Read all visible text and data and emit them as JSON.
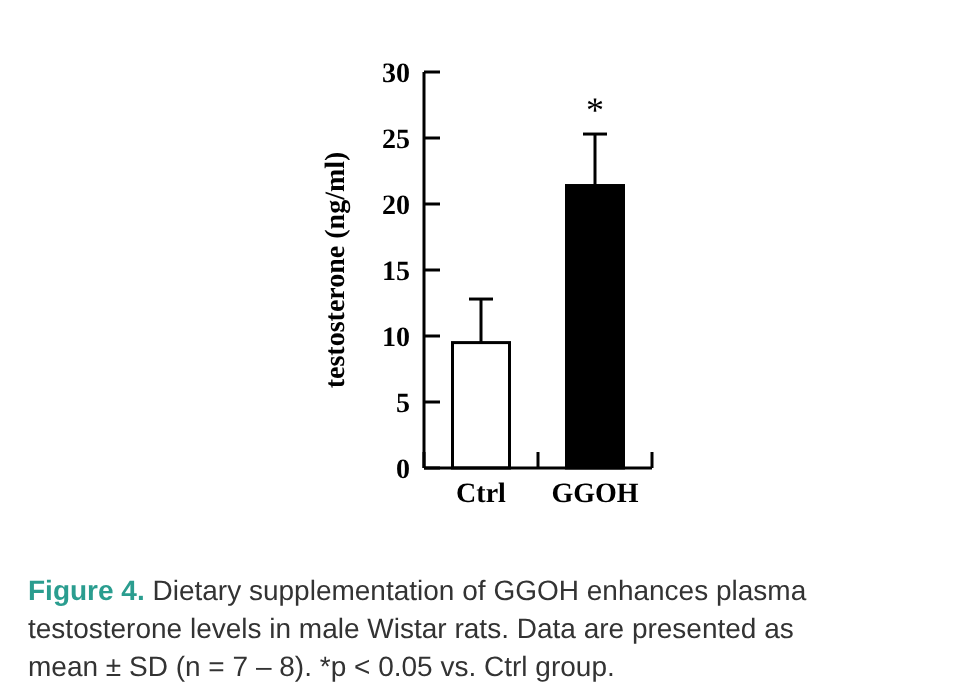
{
  "chart_data": {
    "type": "bar",
    "ylabel": "testosterone (ng/ml)",
    "categories": [
      "Ctrl",
      "GGOH"
    ],
    "values": [
      9.5,
      21.4
    ],
    "colors": [
      "#ffffff",
      "#000000"
    ],
    "errors": [
      [
        9.5,
        12.8
      ],
      [
        21.4,
        25.3
      ]
    ],
    "ylim": [
      0,
      30
    ],
    "yticks": [
      0,
      5,
      10,
      15,
      20,
      25,
      30
    ],
    "grid": false,
    "annotations": [
      "*",
      "Figure 4.",
      "Dietary supplementation of GGOH enhances plasma testosterone levels in male Wistar rats. Data are presented as mean ± SD (n = 7 – 8). *p < 0.05 vs. Ctrl group."
    ]
  }
}
